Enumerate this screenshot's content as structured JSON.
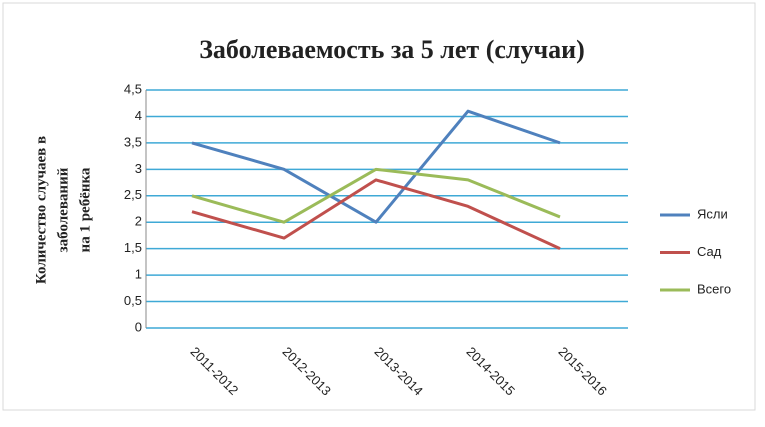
{
  "chart_data": {
    "type": "line",
    "title": "Заболеваемость за 5 лет (случаи)",
    "y_label": [
      "Количество случаев в",
      "заболеваний",
      "на 1 ребёнка"
    ],
    "categories": [
      "2011-2012",
      "2012-2013",
      "2013-2014",
      "2014-2015",
      "2015-2016"
    ],
    "series": [
      {
        "name": "Ясли",
        "color": "#4f81bd",
        "values": [
          3.5,
          3,
          2,
          4.1,
          3.5
        ]
      },
      {
        "name": "Сад",
        "color": "#c0504d",
        "values": [
          2.2,
          1.7,
          2.8,
          2.3,
          1.5
        ]
      },
      {
        "name": "Всего",
        "color": "#9bbb59",
        "values": [
          2.5,
          2,
          3,
          2.8,
          2.1
        ]
      }
    ],
    "ylim": [
      0,
      4.5
    ],
    "yticks": [
      0,
      {
        "value": 0.5,
        "label": "0,5"
      },
      1,
      {
        "value": 1.5,
        "label": "1,5"
      },
      2,
      {
        "value": 2.5,
        "label": "2,5"
      },
      3,
      {
        "value": 3.5,
        "label": "3,5"
      },
      4,
      {
        "value": 4.5,
        "label": "4,5"
      }
    ],
    "grid": true,
    "grid_color": "#3fa9d6",
    "legend": "right"
  }
}
